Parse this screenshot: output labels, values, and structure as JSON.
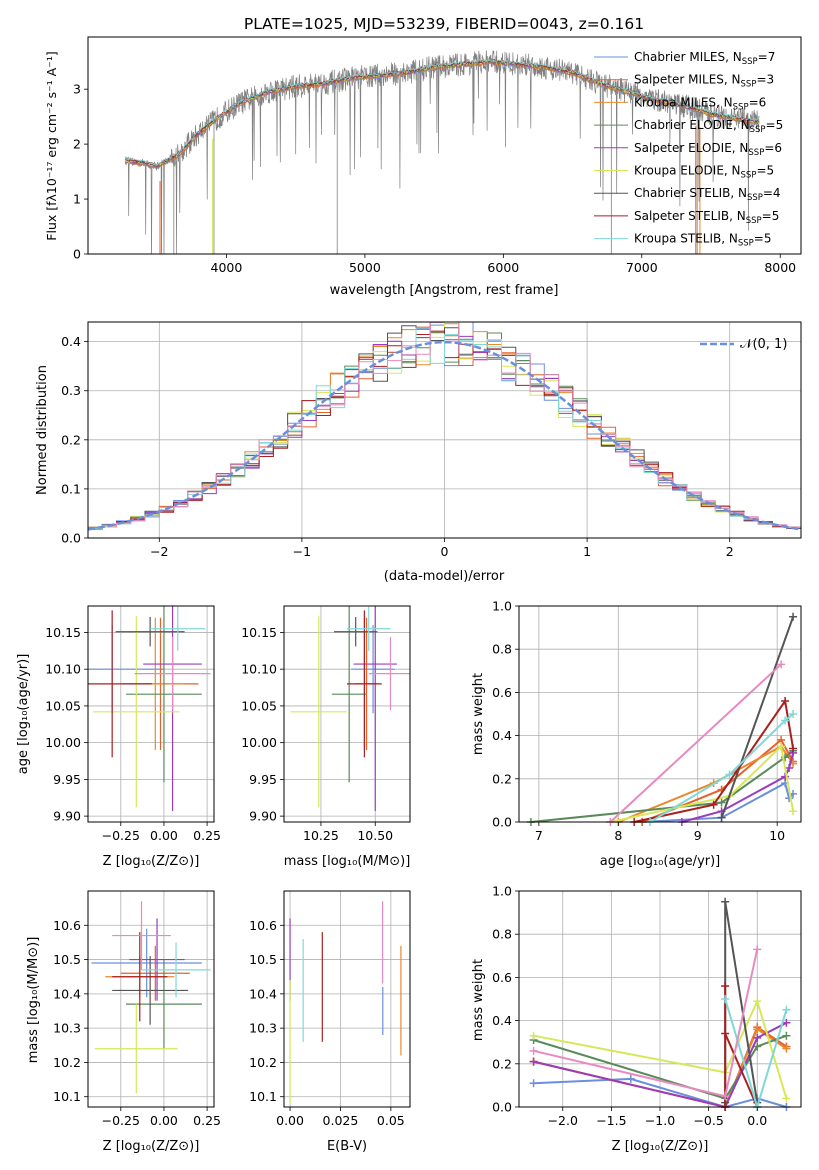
{
  "chart_data": [
    {
      "id": "spectrum",
      "type": "line",
      "title": "PLATE=1025, MJD=53239, FIBERID=0043, z=0.161",
      "xlabel": "wavelength [Angstrom, rest frame]",
      "ylabel": "Flux [fλ10⁻¹⁷ erg cm⁻² s⁻¹ A⁻¹]",
      "xlim": [
        3000,
        8150
      ],
      "ylim": [
        0,
        3.95
      ],
      "xticks": [
        4000,
        5000,
        6000,
        7000,
        8000
      ],
      "yticks": [
        0,
        1,
        2,
        3
      ],
      "data_color": "#808080",
      "data_anchors": [
        [
          3270,
          1.7
        ],
        [
          3400,
          1.65
        ],
        [
          3500,
          1.6
        ],
        [
          3650,
          1.8
        ],
        [
          3800,
          2.2
        ],
        [
          3950,
          2.5
        ],
        [
          4100,
          2.75
        ],
        [
          4300,
          2.95
        ],
        [
          4500,
          3.05
        ],
        [
          4700,
          3.1
        ],
        [
          4900,
          3.2
        ],
        [
          5100,
          3.25
        ],
        [
          5300,
          3.3
        ],
        [
          5500,
          3.4
        ],
        [
          5700,
          3.45
        ],
        [
          5900,
          3.5
        ],
        [
          6100,
          3.45
        ],
        [
          6300,
          3.4
        ],
        [
          6500,
          3.3
        ],
        [
          6700,
          3.1
        ],
        [
          6900,
          2.95
        ],
        [
          7100,
          2.8
        ],
        [
          7300,
          2.7
        ],
        [
          7500,
          2.55
        ],
        [
          7700,
          2.45
        ],
        [
          7850,
          2.4
        ]
      ],
      "legend": [
        {
          "label": "Chabrier MILES, N",
          "sub": "SSP",
          "tail": "=7",
          "color": "#6a8fdc"
        },
        {
          "label": "Salpeter MILES, N",
          "sub": "SSP",
          "tail": "=3",
          "color": "#e8612c"
        },
        {
          "label": "Kroupa MILES, N",
          "sub": "SSP",
          "tail": "=6",
          "color": "#e98a2c"
        },
        {
          "label": "Chabrier ELODIE, N",
          "sub": "SSP",
          "tail": "=5",
          "color": "#5a8a5a"
        },
        {
          "label": "Salpeter ELODIE, N",
          "sub": "SSP",
          "tail": "=6",
          "color": "#9a3cbc"
        },
        {
          "label": "Kroupa ELODIE, N",
          "sub": "SSP",
          "tail": "=5",
          "color": "#d6e85a"
        },
        {
          "label": "Chabrier STELIB, N",
          "sub": "SSP",
          "tail": "=4",
          "color": "#555555"
        },
        {
          "label": "Salpeter STELIB, N",
          "sub": "SSP",
          "tail": "=5",
          "color": "#a82020"
        },
        {
          "label": "Kroupa STELIB, N",
          "sub": "SSP",
          "tail": "=5",
          "color": "#7fd8d8"
        }
      ]
    },
    {
      "id": "residuals",
      "type": "histogram",
      "xlabel": "(data-model)/error",
      "ylabel": "Normed distribution",
      "xlim": [
        -2.5,
        2.5
      ],
      "ylim": [
        0,
        0.44
      ],
      "xticks": [
        -2,
        -1,
        0,
        1,
        2
      ],
      "yticks": [
        0.0,
        0.1,
        0.2,
        0.3,
        0.4
      ],
      "bin_width": 0.1,
      "gaussian": {
        "mean": 0,
        "sigma": 1,
        "color": "#6a8fdc"
      },
      "legend": [
        {
          "label": "𝒩(0, 1)",
          "color": "#6a8fdc"
        }
      ],
      "series_colors": [
        "#6a8fdc",
        "#e8612c",
        "#e98a2c",
        "#5a8a5a",
        "#9a3cbc",
        "#d6e85a",
        "#555555",
        "#a82020",
        "#7fd8d8",
        "#e88ac0"
      ]
    },
    {
      "id": "age_vs_Z",
      "type": "scatter",
      "xlabel": "Z [log₁₀(Z/Z⊙)]",
      "ylabel": "age  [log₁₀(age/yr)]",
      "xlim": [
        -0.44,
        0.29
      ],
      "ylim": [
        9.892,
        10.186
      ],
      "xticks": [
        -0.25,
        0.0,
        0.25
      ],
      "yticks": [
        9.9,
        9.95,
        10.0,
        10.05,
        10.1,
        10.15
      ],
      "points": [
        {
          "x": -0.3,
          "y": 10.1,
          "xerr": 0.3,
          "yerr": 0.06,
          "color": "#6a8fdc"
        },
        {
          "x": -0.02,
          "y": 10.08,
          "xerr": 0.22,
          "yerr": 0.09,
          "color": "#e8612c"
        },
        {
          "x": -0.05,
          "y": 10.08,
          "xerr": 0.17,
          "yerr": 0.09,
          "color": "#e98a2c"
        },
        {
          "x": 0.0,
          "y": 10.066,
          "xerr": 0.22,
          "yerr": 0.12,
          "color": "#5a8a5a"
        },
        {
          "x": 0.05,
          "y": 10.107,
          "xerr": 0.17,
          "yerr": 0.2,
          "color": "#9a3cbc"
        },
        {
          "x": -0.16,
          "y": 10.042,
          "xerr": 0.25,
          "yerr": 0.13,
          "color": "#d6e85a"
        },
        {
          "x": -0.08,
          "y": 10.151,
          "xerr": 0.2,
          "yerr": 0.02,
          "color": "#555555"
        },
        {
          "x": -0.3,
          "y": 10.08,
          "xerr": 0.23,
          "yerr": 0.1,
          "color": "#a82020"
        },
        {
          "x": 0.08,
          "y": 10.155,
          "xerr": 0.16,
          "yerr": 0.03,
          "color": "#7fd8d8"
        },
        {
          "x": 0.05,
          "y": 10.094,
          "xerr": 0.22,
          "yerr": 0.05,
          "color": "#e88ac0"
        }
      ]
    },
    {
      "id": "age_vs_mass",
      "type": "scatter",
      "xlabel": "mass [log₁₀(M/M⊙)]",
      "ylabel": "",
      "xlim": [
        10.08,
        10.66
      ],
      "ylim": [
        9.892,
        10.186
      ],
      "xticks": [
        10.25,
        10.5
      ],
      "yticks": [
        9.9,
        9.95,
        10.0,
        10.05,
        10.1,
        10.15
      ],
      "points": [
        {
          "x": 10.49,
          "y": 10.1,
          "xerr": 0.1,
          "yerr": 0.06,
          "color": "#6a8fdc"
        },
        {
          "x": 10.46,
          "y": 10.08,
          "xerr": 0.05,
          "yerr": 0.09,
          "color": "#e8612c"
        },
        {
          "x": 10.45,
          "y": 10.08,
          "xerr": 0.05,
          "yerr": 0.09,
          "color": "#e98a2c"
        },
        {
          "x": 10.38,
          "y": 10.066,
          "xerr": 0.08,
          "yerr": 0.12,
          "color": "#5a8a5a"
        },
        {
          "x": 10.5,
          "y": 10.107,
          "xerr": 0.1,
          "yerr": 0.2,
          "color": "#9a3cbc"
        },
        {
          "x": 10.24,
          "y": 10.042,
          "xerr": 0.13,
          "yerr": 0.13,
          "color": "#d6e85a"
        },
        {
          "x": 10.41,
          "y": 10.151,
          "xerr": 0.1,
          "yerr": 0.02,
          "color": "#555555"
        },
        {
          "x": 10.45,
          "y": 10.08,
          "xerr": 0.08,
          "yerr": 0.1,
          "color": "#a82020"
        },
        {
          "x": 10.47,
          "y": 10.155,
          "xerr": 0.1,
          "yerr": 0.03,
          "color": "#7fd8d8"
        },
        {
          "x": 10.57,
          "y": 10.094,
          "xerr": 0.1,
          "yerr": 0.05,
          "color": "#e88ac0"
        }
      ]
    },
    {
      "id": "mass_weight_vs_age",
      "type": "line",
      "xlabel": "age  [log₁₀(age/yr)]",
      "ylabel": "mass weight",
      "xlim": [
        6.75,
        10.3
      ],
      "ylim": [
        0,
        1
      ],
      "xticks": [
        7,
        8,
        9,
        10
      ],
      "yticks": [
        0.0,
        0.2,
        0.4,
        0.6,
        0.8,
        1.0
      ],
      "series": [
        {
          "color": "#6a8fdc",
          "x": [
            8.3,
            9.3,
            10.1,
            10.15,
            10.2
          ],
          "y": [
            0.0,
            0.02,
            0.18,
            0.11,
            0.13
          ]
        },
        {
          "color": "#e8612c",
          "x": [
            8.3,
            9.3,
            10.05,
            10.2
          ],
          "y": [
            0.0,
            0.15,
            0.38,
            0.28
          ]
        },
        {
          "color": "#e98a2c",
          "x": [
            8.0,
            9.2,
            10.05,
            10.2
          ],
          "y": [
            0.0,
            0.18,
            0.35,
            0.27
          ]
        },
        {
          "color": "#5a8a5a",
          "x": [
            6.9,
            9.3,
            10.1,
            10.2
          ],
          "y": [
            0.0,
            0.09,
            0.3,
            0.33
          ]
        },
        {
          "color": "#9a3cbc",
          "x": [
            8.8,
            9.3,
            10.1,
            10.15,
            10.2
          ],
          "y": [
            0.0,
            0.05,
            0.21,
            0.25,
            0.32
          ]
        },
        {
          "color": "#d6e85a",
          "x": [
            7.9,
            9.4,
            10.05,
            10.2
          ],
          "y": [
            0.0,
            0.12,
            0.35,
            0.05
          ]
        },
        {
          "color": "#555555",
          "x": [
            9.3,
            10.2
          ],
          "y": [
            0.02,
            0.95
          ]
        },
        {
          "color": "#a82020",
          "x": [
            8.2,
            9.2,
            10.1,
            10.2
          ],
          "y": [
            0.0,
            0.08,
            0.56,
            0.34
          ]
        },
        {
          "color": "#7fd8d8",
          "x": [
            8.4,
            9.4,
            10.1,
            10.2
          ],
          "y": [
            0.0,
            0.22,
            0.47,
            0.5
          ]
        },
        {
          "color": "#e88ac0",
          "x": [
            7.9,
            10.05
          ],
          "y": [
            0.0,
            0.73
          ]
        }
      ]
    },
    {
      "id": "mass_vs_Z",
      "type": "scatter",
      "xlabel": "Z [log₁₀(Z/Z⊙)]",
      "ylabel": "mass [log₁₀(M/M⊙)]",
      "xlim": [
        -0.44,
        0.29
      ],
      "ylim": [
        10.07,
        10.7
      ],
      "xticks": [
        -0.25,
        0.0,
        0.25
      ],
      "yticks": [
        10.1,
        10.2,
        10.3,
        10.4,
        10.5,
        10.6
      ],
      "points": [
        {
          "x": -0.1,
          "y": 10.49,
          "xerr": 0.32,
          "yerr": 0.1,
          "color": "#6a8fdc"
        },
        {
          "x": -0.05,
          "y": 10.46,
          "xerr": 0.2,
          "yerr": 0.08,
          "color": "#e8612c"
        },
        {
          "x": -0.14,
          "y": 10.45,
          "xerr": 0.2,
          "yerr": 0.06,
          "color": "#e98a2c"
        },
        {
          "x": 0.0,
          "y": 10.37,
          "xerr": 0.22,
          "yerr": 0.13,
          "color": "#5a8a5a"
        },
        {
          "x": -0.04,
          "y": 10.5,
          "xerr": 0.16,
          "yerr": 0.12,
          "color": "#9a3cbc"
        },
        {
          "x": -0.16,
          "y": 10.24,
          "xerr": 0.24,
          "yerr": 0.13,
          "color": "#d6e85a"
        },
        {
          "x": -0.08,
          "y": 10.41,
          "xerr": 0.22,
          "yerr": 0.1,
          "color": "#555555"
        },
        {
          "x": -0.14,
          "y": 10.45,
          "xerr": 0.16,
          "yerr": 0.13,
          "color": "#a82020"
        },
        {
          "x": 0.07,
          "y": 10.47,
          "xerr": 0.2,
          "yerr": 0.08,
          "color": "#7fd8d8"
        },
        {
          "x": -0.13,
          "y": 10.57,
          "xerr": 0.17,
          "yerr": 0.1,
          "color": "#e88ac0"
        }
      ]
    },
    {
      "id": "mass_vs_ebv",
      "type": "scatter",
      "xlabel": "E(B-V)",
      "ylabel": "",
      "xlim": [
        -0.003,
        0.0595
      ],
      "ylim": [
        10.07,
        10.7
      ],
      "xticks": [
        0.0,
        0.025,
        0.05
      ],
      "yticks": [
        10.1,
        10.2,
        10.3,
        10.4,
        10.5,
        10.6
      ],
      "points": [
        {
          "x": 0.046,
          "y": 10.35,
          "xerr": 0,
          "yerr": 0.07,
          "color": "#6a8fdc"
        },
        {
          "x": 0.055,
          "y": 10.38,
          "xerr": 0,
          "yerr": 0.16,
          "color": "#e98a2c"
        },
        {
          "x": 0.0,
          "y": 10.5,
          "xerr": 0,
          "yerr": 0.12,
          "color": "#9a3cbc"
        },
        {
          "x": 0.0,
          "y": 10.26,
          "xerr": 0,
          "yerr": 0.18,
          "color": "#d6e85a"
        },
        {
          "x": 0.016,
          "y": 10.42,
          "xerr": 0,
          "yerr": 0.16,
          "color": "#a82020"
        },
        {
          "x": 0.0065,
          "y": 10.41,
          "xerr": 0,
          "yerr": 0.15,
          "color": "#7fd8d8"
        },
        {
          "x": 0.0459,
          "y": 10.55,
          "xerr": 0,
          "yerr": 0.12,
          "color": "#e88ac0"
        }
      ]
    },
    {
      "id": "mass_weight_vs_Z",
      "type": "line",
      "xlabel": "Z [log₁₀(Z/Z⊙)]",
      "ylabel": "mass weight",
      "xlim": [
        -2.45,
        0.45
      ],
      "ylim": [
        0,
        1
      ],
      "xticks": [
        -2.0,
        -1.5,
        -1.0,
        -0.5,
        0.0
      ],
      "yticks": [
        0.0,
        0.2,
        0.4,
        0.6,
        0.8,
        1.0
      ],
      "series": [
        {
          "color": "#6a8fdc",
          "x": [
            -2.3,
            -1.3,
            -0.33,
            0.0,
            0.3
          ],
          "y": [
            0.11,
            0.13,
            0.0,
            0.04,
            0.0
          ]
        },
        {
          "color": "#e8612c",
          "x": [
            -2.3,
            -0.33,
            0.0,
            0.3
          ],
          "y": [
            0.21,
            0.0,
            0.37,
            0.28
          ]
        },
        {
          "color": "#e98a2c",
          "x": [
            -2.3,
            -0.33,
            0.0,
            0.3
          ],
          "y": [
            0.21,
            0.0,
            0.36,
            0.27
          ]
        },
        {
          "color": "#5a8a5a",
          "x": [
            -2.3,
            -0.33,
            0.0,
            0.3
          ],
          "y": [
            0.31,
            0.04,
            0.28,
            0.33
          ]
        },
        {
          "color": "#9a3cbc",
          "x": [
            -2.3,
            -0.33,
            0.0,
            0.3
          ],
          "y": [
            0.21,
            0.0,
            0.32,
            0.39
          ]
        },
        {
          "color": "#d6e85a",
          "x": [
            -2.3,
            -0.33,
            0.0,
            0.3
          ],
          "y": [
            0.33,
            0.16,
            0.49,
            0.04
          ]
        },
        {
          "color": "#555555",
          "x": [
            -0.33,
            -0.33,
            0.0
          ],
          "y": [
            0.02,
            0.95,
            0.02
          ]
        },
        {
          "color": "#a82020",
          "x": [
            -0.33,
            -0.33,
            -0.33,
            0.0
          ],
          "y": [
            0.0,
            0.56,
            0.34,
            0.0
          ]
        },
        {
          "color": "#7fd8d8",
          "x": [
            -0.33,
            0.0,
            0.3
          ],
          "y": [
            0.5,
            0.0,
            0.45
          ]
        },
        {
          "color": "#e88ac0",
          "x": [
            -2.3,
            -0.33,
            0.0
          ],
          "y": [
            0.26,
            0.05,
            0.73
          ]
        }
      ]
    }
  ]
}
